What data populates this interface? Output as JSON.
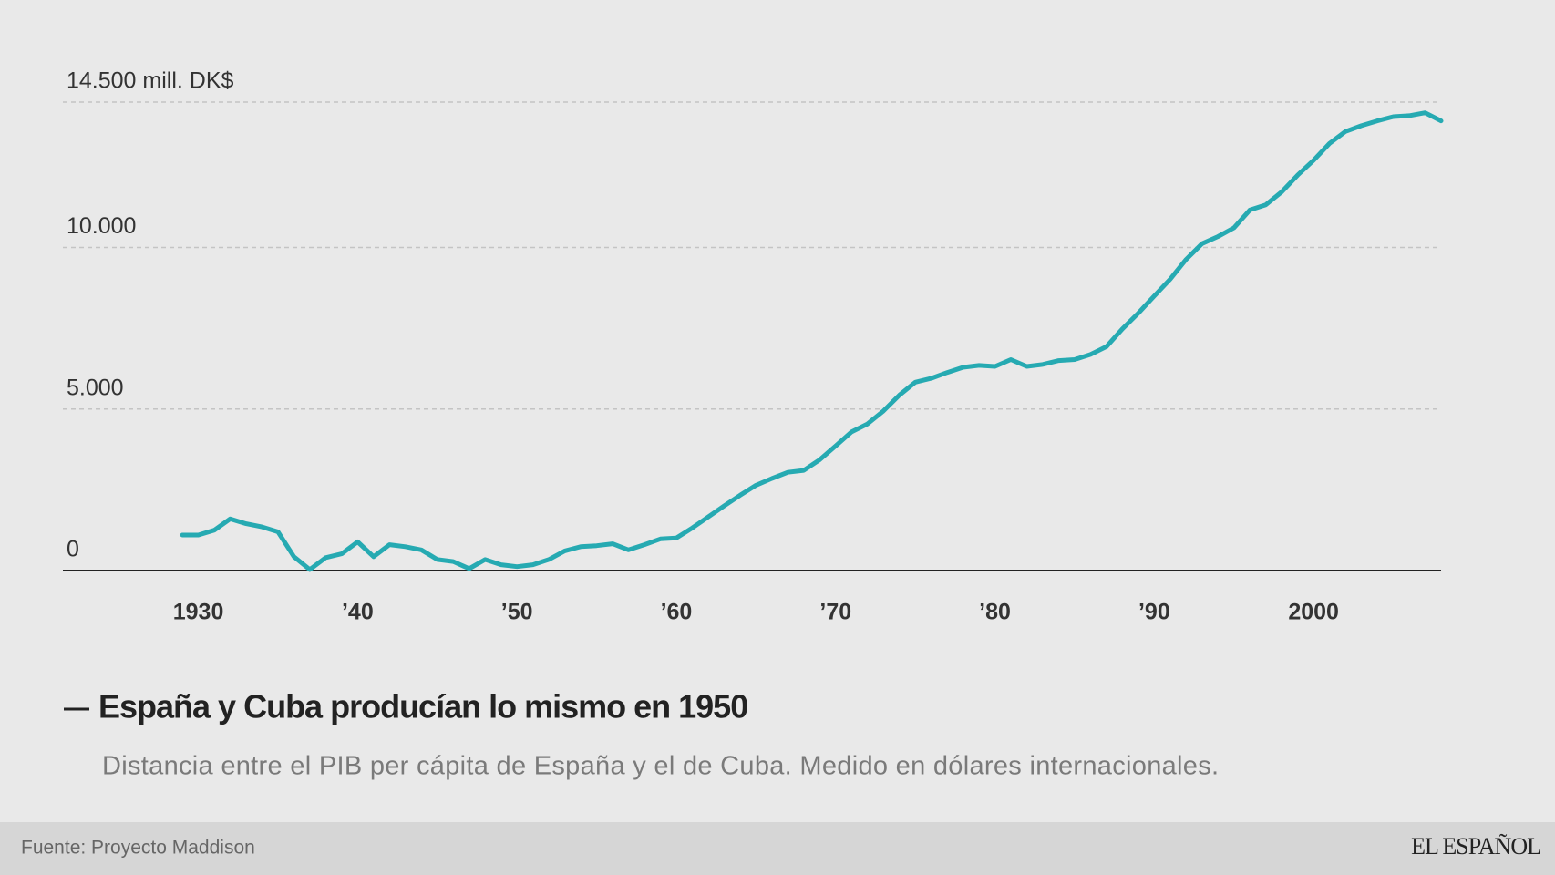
{
  "chart_data": {
    "type": "line",
    "title": "España y Cuba producían lo mismo en 1950",
    "subtitle": "Distancia entre el PIB per cápita de España y el de Cuba. Medido en dólares internacionales.",
    "source": "Fuente: Proyecto Maddison",
    "brand": "EL ESPAÑOL",
    "x": [
      1929,
      1930,
      1931,
      1932,
      1933,
      1934,
      1935,
      1936,
      1937,
      1938,
      1939,
      1940,
      1941,
      1942,
      1943,
      1944,
      1945,
      1946,
      1947,
      1948,
      1949,
      1950,
      1951,
      1952,
      1953,
      1954,
      1955,
      1956,
      1957,
      1958,
      1959,
      1960,
      1961,
      1962,
      1963,
      1964,
      1965,
      1966,
      1967,
      1968,
      1969,
      1970,
      1971,
      1972,
      1973,
      1974,
      1975,
      1976,
      1977,
      1978,
      1979,
      1980,
      1981,
      1982,
      1983,
      1984,
      1985,
      1986,
      1987,
      1988,
      1989,
      1990,
      1991,
      1992,
      1993,
      1994,
      1995,
      1996,
      1997,
      1998,
      1999,
      2000,
      2001,
      2002,
      2003,
      2004,
      2005,
      2006,
      2007,
      2008
    ],
    "series": [
      {
        "name": "España y Cuba",
        "color": "#26aab2",
        "values": [
          1100,
          1100,
          1250,
          1600,
          1450,
          1350,
          1200,
          430,
          30,
          400,
          520,
          890,
          430,
          800,
          740,
          640,
          340,
          280,
          60,
          340,
          180,
          120,
          180,
          340,
          610,
          740,
          770,
          830,
          640,
          800,
          980,
          1010,
          1320,
          1660,
          2000,
          2330,
          2640,
          2850,
          3040,
          3100,
          3430,
          3860,
          4290,
          4540,
          4940,
          5430,
          5830,
          5950,
          6130,
          6290,
          6350,
          6320,
          6530,
          6320,
          6380,
          6500,
          6530,
          6690,
          6930,
          7480,
          7970,
          8500,
          9020,
          9630,
          10120,
          10340,
          10610,
          11160,
          11320,
          11720,
          12240,
          12700,
          13220,
          13590,
          13770,
          13920,
          14050,
          14080,
          14170,
          13920
        ]
      }
    ],
    "xlim": [
      1921.5,
      2008
    ],
    "xticks": [
      {
        "value": 1930,
        "label": "1930"
      },
      {
        "value": 1940,
        "label": "’40"
      },
      {
        "value": 1950,
        "label": "’50"
      },
      {
        "value": 1960,
        "label": "’60"
      },
      {
        "value": 1970,
        "label": "’70"
      },
      {
        "value": 1980,
        "label": "’80"
      },
      {
        "value": 1990,
        "label": "’90"
      },
      {
        "value": 2000,
        "label": "2000"
      }
    ],
    "ylim": [
      0,
      14500
    ],
    "yticks": [
      {
        "value": 0,
        "label": "0"
      },
      {
        "value": 5000,
        "label": "5.000"
      },
      {
        "value": 10000,
        "label": "10.000"
      },
      {
        "value": 14500,
        "label": "14.500 mill. DK$"
      }
    ],
    "grid": true
  }
}
